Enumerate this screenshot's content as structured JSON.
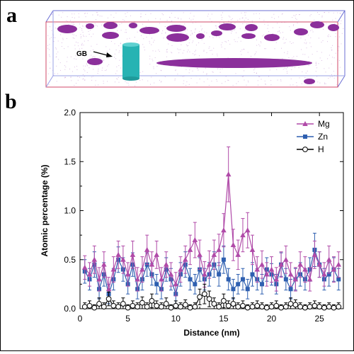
{
  "panels": {
    "a": {
      "letter": "a",
      "gb_label": "GB",
      "colors": {
        "frame": "#6b6fd3",
        "precipitate": "#8b2f9b",
        "boundary": "#27b3b3",
        "matrix_dots": "#c08bd0"
      }
    },
    "b": {
      "letter": "b"
    }
  },
  "chart_data": {
    "type": "line",
    "xlabel": "Distance (nm)",
    "ylabel": "Atomic percentage (%)",
    "xlim": [
      0,
      27.5
    ],
    "ylim": [
      0,
      2.0
    ],
    "xticks": [
      0,
      5,
      10,
      15,
      20,
      25
    ],
    "yticks": [
      0.0,
      0.5,
      1.0,
      1.5,
      2.0
    ],
    "xtick_labels": [
      "0",
      "5",
      "10",
      "15",
      "20",
      "25"
    ],
    "ytick_labels": [
      "0.0",
      "0.5",
      "1.0",
      "1.5",
      "2.0"
    ],
    "legend_position": "top-right",
    "x": [
      0.5,
      1.0,
      1.5,
      2.0,
      2.5,
      3.0,
      3.5,
      4.0,
      4.5,
      5.0,
      5.5,
      6.0,
      6.5,
      7.0,
      7.5,
      8.0,
      8.5,
      9.0,
      9.5,
      10.0,
      10.5,
      11.0,
      11.5,
      12.0,
      12.5,
      13.0,
      13.5,
      14.0,
      14.5,
      15.0,
      15.5,
      16.0,
      16.5,
      17.0,
      17.5,
      18.0,
      18.5,
      19.0,
      19.5,
      20.0,
      20.5,
      21.0,
      21.5,
      22.0,
      22.5,
      23.0,
      23.5,
      24.0,
      24.5,
      25.0,
      25.5,
      26.0,
      26.5,
      27.0
    ],
    "series": [
      {
        "name": "Mg",
        "color": "#b04aa8",
        "marker": "triangle",
        "values": [
          0.42,
          0.35,
          0.5,
          0.3,
          0.45,
          0.2,
          0.4,
          0.55,
          0.5,
          0.35,
          0.55,
          0.3,
          0.4,
          0.6,
          0.45,
          0.55,
          0.3,
          0.45,
          0.35,
          0.25,
          0.4,
          0.5,
          0.6,
          0.7,
          0.55,
          0.35,
          0.45,
          0.55,
          0.6,
          0.8,
          1.37,
          0.65,
          0.55,
          0.75,
          0.8,
          0.6,
          0.4,
          0.45,
          0.35,
          0.4,
          0.3,
          0.45,
          0.5,
          0.35,
          0.3,
          0.45,
          0.4,
          0.3,
          0.55,
          0.45,
          0.35,
          0.5,
          0.4,
          0.45
        ],
        "errors": [
          0.12,
          0.12,
          0.14,
          0.12,
          0.13,
          0.12,
          0.13,
          0.14,
          0.14,
          0.12,
          0.14,
          0.12,
          0.13,
          0.15,
          0.13,
          0.14,
          0.12,
          0.13,
          0.12,
          0.12,
          0.13,
          0.14,
          0.15,
          0.18,
          0.15,
          0.13,
          0.14,
          0.15,
          0.16,
          0.17,
          0.28,
          0.16,
          0.15,
          0.17,
          0.18,
          0.15,
          0.13,
          0.14,
          0.12,
          0.13,
          0.12,
          0.13,
          0.14,
          0.12,
          0.12,
          0.13,
          0.13,
          0.12,
          0.14,
          0.13,
          0.12,
          0.14,
          0.13,
          0.13
        ]
      },
      {
        "name": "Zn",
        "color": "#2e5fb0",
        "marker": "square",
        "values": [
          0.38,
          0.3,
          0.45,
          0.2,
          0.35,
          0.15,
          0.3,
          0.5,
          0.4,
          0.25,
          0.45,
          0.2,
          0.3,
          0.45,
          0.35,
          0.25,
          0.2,
          0.4,
          0.3,
          0.15,
          0.35,
          0.45,
          0.3,
          0.25,
          0.4,
          0.3,
          0.35,
          0.45,
          0.35,
          0.5,
          0.3,
          0.2,
          0.25,
          0.3,
          0.2,
          0.35,
          0.3,
          0.25,
          0.4,
          0.35,
          0.25,
          0.45,
          0.3,
          0.2,
          0.3,
          0.35,
          0.3,
          0.4,
          0.6,
          0.45,
          0.3,
          0.35,
          0.4,
          0.3
        ],
        "errors": [
          0.12,
          0.11,
          0.13,
          0.1,
          0.12,
          0.1,
          0.11,
          0.13,
          0.12,
          0.1,
          0.12,
          0.1,
          0.11,
          0.12,
          0.11,
          0.1,
          0.1,
          0.12,
          0.11,
          0.1,
          0.12,
          0.13,
          0.11,
          0.1,
          0.12,
          0.11,
          0.12,
          0.13,
          0.12,
          0.14,
          0.11,
          0.1,
          0.1,
          0.11,
          0.1,
          0.12,
          0.11,
          0.1,
          0.12,
          0.11,
          0.1,
          0.12,
          0.11,
          0.1,
          0.11,
          0.12,
          0.11,
          0.12,
          0.17,
          0.13,
          0.11,
          0.12,
          0.12,
          0.11
        ]
      },
      {
        "name": "H",
        "color": "#000000",
        "marker": "circle",
        "values": [
          0.02,
          0.03,
          0.01,
          0.05,
          0.02,
          0.1,
          0.03,
          0.02,
          0.05,
          0.01,
          0.03,
          0.02,
          0.06,
          0.02,
          0.08,
          0.03,
          0.02,
          0.05,
          0.01,
          0.03,
          0.02,
          0.04,
          0.01,
          0.02,
          0.12,
          0.15,
          0.1,
          0.05,
          0.02,
          0.08,
          0.03,
          0.05,
          0.02,
          0.03,
          0.01,
          0.02,
          0.03,
          0.02,
          0.01,
          0.02,
          0.03,
          0.01,
          0.02,
          0.05,
          0.04,
          0.02,
          0.01,
          0.02,
          0.03,
          0.02,
          0.01,
          0.02,
          0.01,
          0.02
        ],
        "errors": [
          0.04,
          0.05,
          0.03,
          0.06,
          0.04,
          0.07,
          0.05,
          0.04,
          0.06,
          0.03,
          0.05,
          0.04,
          0.06,
          0.04,
          0.07,
          0.05,
          0.04,
          0.06,
          0.03,
          0.05,
          0.04,
          0.05,
          0.03,
          0.04,
          0.08,
          0.1,
          0.08,
          0.06,
          0.04,
          0.07,
          0.05,
          0.06,
          0.04,
          0.05,
          0.03,
          0.04,
          0.05,
          0.04,
          0.03,
          0.04,
          0.05,
          0.03,
          0.04,
          0.06,
          0.05,
          0.04,
          0.03,
          0.04,
          0.05,
          0.04,
          0.03,
          0.04,
          0.03,
          0.04
        ]
      }
    ]
  }
}
